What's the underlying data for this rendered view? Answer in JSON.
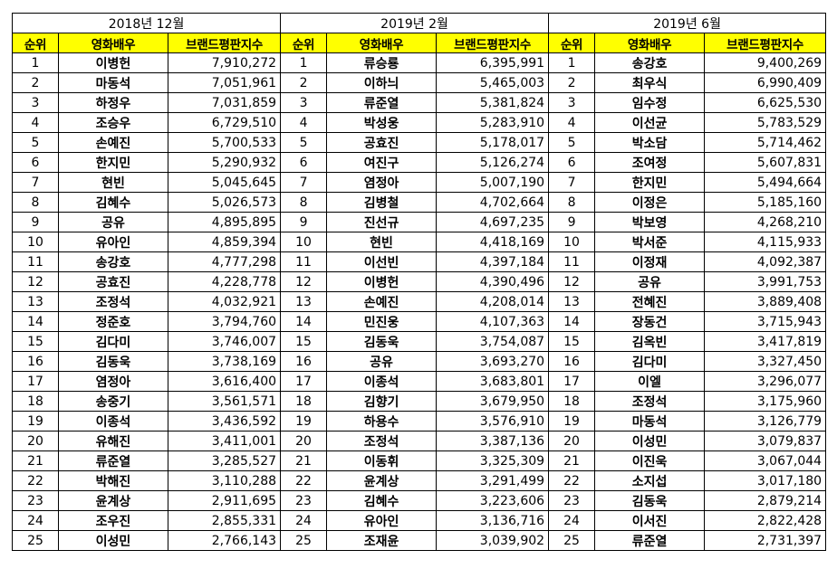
{
  "columns": {
    "rank": "순위",
    "actor": "영화배우",
    "score": "브랜드평판지수"
  },
  "periods": [
    {
      "label": "2018년 12월",
      "rows": [
        {
          "rank": "1",
          "name": "이병헌",
          "score": "7,910,272"
        },
        {
          "rank": "2",
          "name": "마동석",
          "score": "7,051,961"
        },
        {
          "rank": "3",
          "name": "하정우",
          "score": "7,031,859"
        },
        {
          "rank": "4",
          "name": "조승우",
          "score": "6,729,510"
        },
        {
          "rank": "5",
          "name": "손예진",
          "score": "5,700,533"
        },
        {
          "rank": "6",
          "name": "한지민",
          "score": "5,290,932"
        },
        {
          "rank": "7",
          "name": "현빈",
          "score": "5,045,645"
        },
        {
          "rank": "8",
          "name": "김혜수",
          "score": "5,026,573"
        },
        {
          "rank": "9",
          "name": "공유",
          "score": "4,895,895"
        },
        {
          "rank": "10",
          "name": "유아인",
          "score": "4,859,394"
        },
        {
          "rank": "11",
          "name": "송강호",
          "score": "4,777,298"
        },
        {
          "rank": "12",
          "name": "공효진",
          "score": "4,228,778"
        },
        {
          "rank": "13",
          "name": "조정석",
          "score": "4,032,921"
        },
        {
          "rank": "14",
          "name": "정준호",
          "score": "3,794,760"
        },
        {
          "rank": "15",
          "name": "김다미",
          "score": "3,746,007"
        },
        {
          "rank": "16",
          "name": "김동욱",
          "score": "3,738,169"
        },
        {
          "rank": "17",
          "name": "염정아",
          "score": "3,616,400"
        },
        {
          "rank": "18",
          "name": "송중기",
          "score": "3,561,571"
        },
        {
          "rank": "19",
          "name": "이종석",
          "score": "3,436,592"
        },
        {
          "rank": "20",
          "name": "유해진",
          "score": "3,411,001"
        },
        {
          "rank": "21",
          "name": "류준열",
          "score": "3,285,527"
        },
        {
          "rank": "22",
          "name": "박해진",
          "score": "3,110,288"
        },
        {
          "rank": "23",
          "name": "윤계상",
          "score": "2,911,695"
        },
        {
          "rank": "24",
          "name": "조우진",
          "score": "2,855,331"
        },
        {
          "rank": "25",
          "name": "이성민",
          "score": "2,766,143"
        }
      ]
    },
    {
      "label": "2019년 2월",
      "rows": [
        {
          "rank": "1",
          "name": "류승룡",
          "score": "6,395,991"
        },
        {
          "rank": "2",
          "name": "이하늬",
          "score": "5,465,003"
        },
        {
          "rank": "3",
          "name": "류준열",
          "score": "5,381,824"
        },
        {
          "rank": "4",
          "name": "박성웅",
          "score": "5,283,910"
        },
        {
          "rank": "5",
          "name": "공효진",
          "score": "5,178,017"
        },
        {
          "rank": "6",
          "name": "여진구",
          "score": "5,126,274"
        },
        {
          "rank": "7",
          "name": "염정아",
          "score": "5,007,190"
        },
        {
          "rank": "8",
          "name": "김병철",
          "score": "4,702,664"
        },
        {
          "rank": "9",
          "name": "진선규",
          "score": "4,697,235"
        },
        {
          "rank": "10",
          "name": "현빈",
          "score": "4,418,169"
        },
        {
          "rank": "11",
          "name": "이선빈",
          "score": "4,397,184"
        },
        {
          "rank": "12",
          "name": "이병헌",
          "score": "4,390,496"
        },
        {
          "rank": "13",
          "name": "손예진",
          "score": "4,208,014"
        },
        {
          "rank": "14",
          "name": "민진웅",
          "score": "4,107,363"
        },
        {
          "rank": "15",
          "name": "김동욱",
          "score": "3,754,087"
        },
        {
          "rank": "16",
          "name": "공유",
          "score": "3,693,270"
        },
        {
          "rank": "17",
          "name": "이종석",
          "score": "3,683,801"
        },
        {
          "rank": "18",
          "name": "김향기",
          "score": "3,679,950"
        },
        {
          "rank": "19",
          "name": "하용수",
          "score": "3,576,910"
        },
        {
          "rank": "20",
          "name": "조정석",
          "score": "3,387,136"
        },
        {
          "rank": "21",
          "name": "이동휘",
          "score": "3,325,309"
        },
        {
          "rank": "22",
          "name": "윤계상",
          "score": "3,291,499"
        },
        {
          "rank": "23",
          "name": "김혜수",
          "score": "3,223,606"
        },
        {
          "rank": "24",
          "name": "유아인",
          "score": "3,136,716"
        },
        {
          "rank": "25",
          "name": "조재윤",
          "score": "3,039,902"
        }
      ]
    },
    {
      "label": "2019년 6월",
      "rows": [
        {
          "rank": "1",
          "name": "송강호",
          "score": "9,400,269"
        },
        {
          "rank": "2",
          "name": "최우식",
          "score": "6,990,409"
        },
        {
          "rank": "3",
          "name": "임수정",
          "score": "6,625,530"
        },
        {
          "rank": "4",
          "name": "이선균",
          "score": "5,783,529"
        },
        {
          "rank": "5",
          "name": "박소담",
          "score": "5,714,462"
        },
        {
          "rank": "6",
          "name": "조여정",
          "score": "5,607,831"
        },
        {
          "rank": "7",
          "name": "한지민",
          "score": "5,494,664"
        },
        {
          "rank": "8",
          "name": "이정은",
          "score": "5,185,160"
        },
        {
          "rank": "9",
          "name": "박보영",
          "score": "4,268,210"
        },
        {
          "rank": "10",
          "name": "박서준",
          "score": "4,115,933"
        },
        {
          "rank": "11",
          "name": "이정재",
          "score": "4,092,387"
        },
        {
          "rank": "12",
          "name": "공유",
          "score": "3,991,753"
        },
        {
          "rank": "13",
          "name": "전혜진",
          "score": "3,889,408"
        },
        {
          "rank": "14",
          "name": "장동건",
          "score": "3,715,943"
        },
        {
          "rank": "15",
          "name": "김옥빈",
          "score": "3,417,819"
        },
        {
          "rank": "16",
          "name": "김다미",
          "score": "3,327,450"
        },
        {
          "rank": "17",
          "name": "이엘",
          "score": "3,296,077"
        },
        {
          "rank": "18",
          "name": "조정석",
          "score": "3,175,960"
        },
        {
          "rank": "19",
          "name": "마동석",
          "score": "3,126,779"
        },
        {
          "rank": "20",
          "name": "이성민",
          "score": "3,079,837"
        },
        {
          "rank": "21",
          "name": "이진욱",
          "score": "3,067,044"
        },
        {
          "rank": "22",
          "name": "소지섭",
          "score": "3,017,180"
        },
        {
          "rank": "23",
          "name": "김동욱",
          "score": "2,879,214"
        },
        {
          "rank": "24",
          "name": "이서진",
          "score": "2,822,428"
        },
        {
          "rank": "25",
          "name": "류준열",
          "score": "2,731,397"
        }
      ]
    }
  ],
  "colors": {
    "header_bg": "#ffff00",
    "border": "#000000",
    "text": "#000000",
    "background": "#ffffff"
  }
}
